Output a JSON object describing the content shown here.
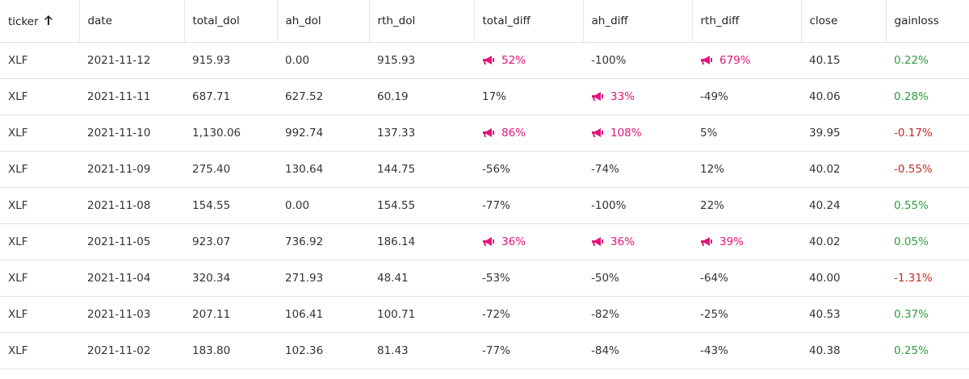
{
  "table": {
    "columns": [
      "ticker",
      "date",
      "total_dol",
      "ah_dol",
      "rth_dol",
      "total_diff",
      "ah_diff",
      "rth_diff",
      "close",
      "gainloss"
    ],
    "rows": [
      [
        "XLF",
        "2021-11-12",
        "915.93",
        "0.00",
        "915.93",
        {
          "text": "52%",
          "alert": true
        },
        "-100%",
        {
          "text": "679%",
          "alert": true
        },
        "40.15",
        {
          "text": "0.22%",
          "color": "#2e9e3e"
        }
      ],
      [
        "XLF",
        "2021-11-11",
        "687.71",
        "627.52",
        "60.19",
        "17%",
        {
          "text": "33%",
          "alert": true
        },
        "-49%",
        "40.06",
        {
          "text": "0.28%",
          "color": "#2e9e3e"
        }
      ],
      [
        "XLF",
        "2021-11-10",
        "1,130.06",
        "992.74",
        "137.33",
        {
          "text": "86%",
          "alert": true
        },
        {
          "text": "108%",
          "alert": true
        },
        "5%",
        "39.95",
        {
          "text": "-0.17%",
          "color": "#c62828"
        }
      ],
      [
        "XLF",
        "2021-11-09",
        "275.40",
        "130.64",
        "144.75",
        "-56%",
        "-74%",
        "12%",
        "40.02",
        {
          "text": "-0.55%",
          "color": "#c62828"
        }
      ],
      [
        "XLF",
        "2021-11-08",
        "154.55",
        "0.00",
        "154.55",
        "-77%",
        "-100%",
        "22%",
        "40.24",
        {
          "text": "0.55%",
          "color": "#2e9e3e"
        }
      ],
      [
        "XLF",
        "2021-11-05",
        "923.07",
        "736.92",
        "186.14",
        {
          "text": "36%",
          "alert": true
        },
        {
          "text": "36%",
          "alert": true
        },
        {
          "text": "39%",
          "alert": true
        },
        "40.02",
        {
          "text": "0.05%",
          "color": "#2e9e3e"
        }
      ],
      [
        "XLF",
        "2021-11-04",
        "320.34",
        "271.93",
        "48.41",
        "-53%",
        "-50%",
        "-64%",
        "40.00",
        {
          "text": "-1.31%",
          "color": "#c62828"
        }
      ],
      [
        "XLF",
        "2021-11-03",
        "207.11",
        "106.41",
        "100.71",
        "-72%",
        "-82%",
        "-25%",
        "40.53",
        {
          "text": "0.37%",
          "color": "#2e9e3e"
        }
      ],
      [
        "XLF",
        "2021-11-02",
        "183.80",
        "102.36",
        "81.43",
        "-77%",
        "-84%",
        "-43%",
        "40.38",
        {
          "text": "0.25%",
          "color": "#2e9e3e"
        }
      ]
    ]
  }
}
